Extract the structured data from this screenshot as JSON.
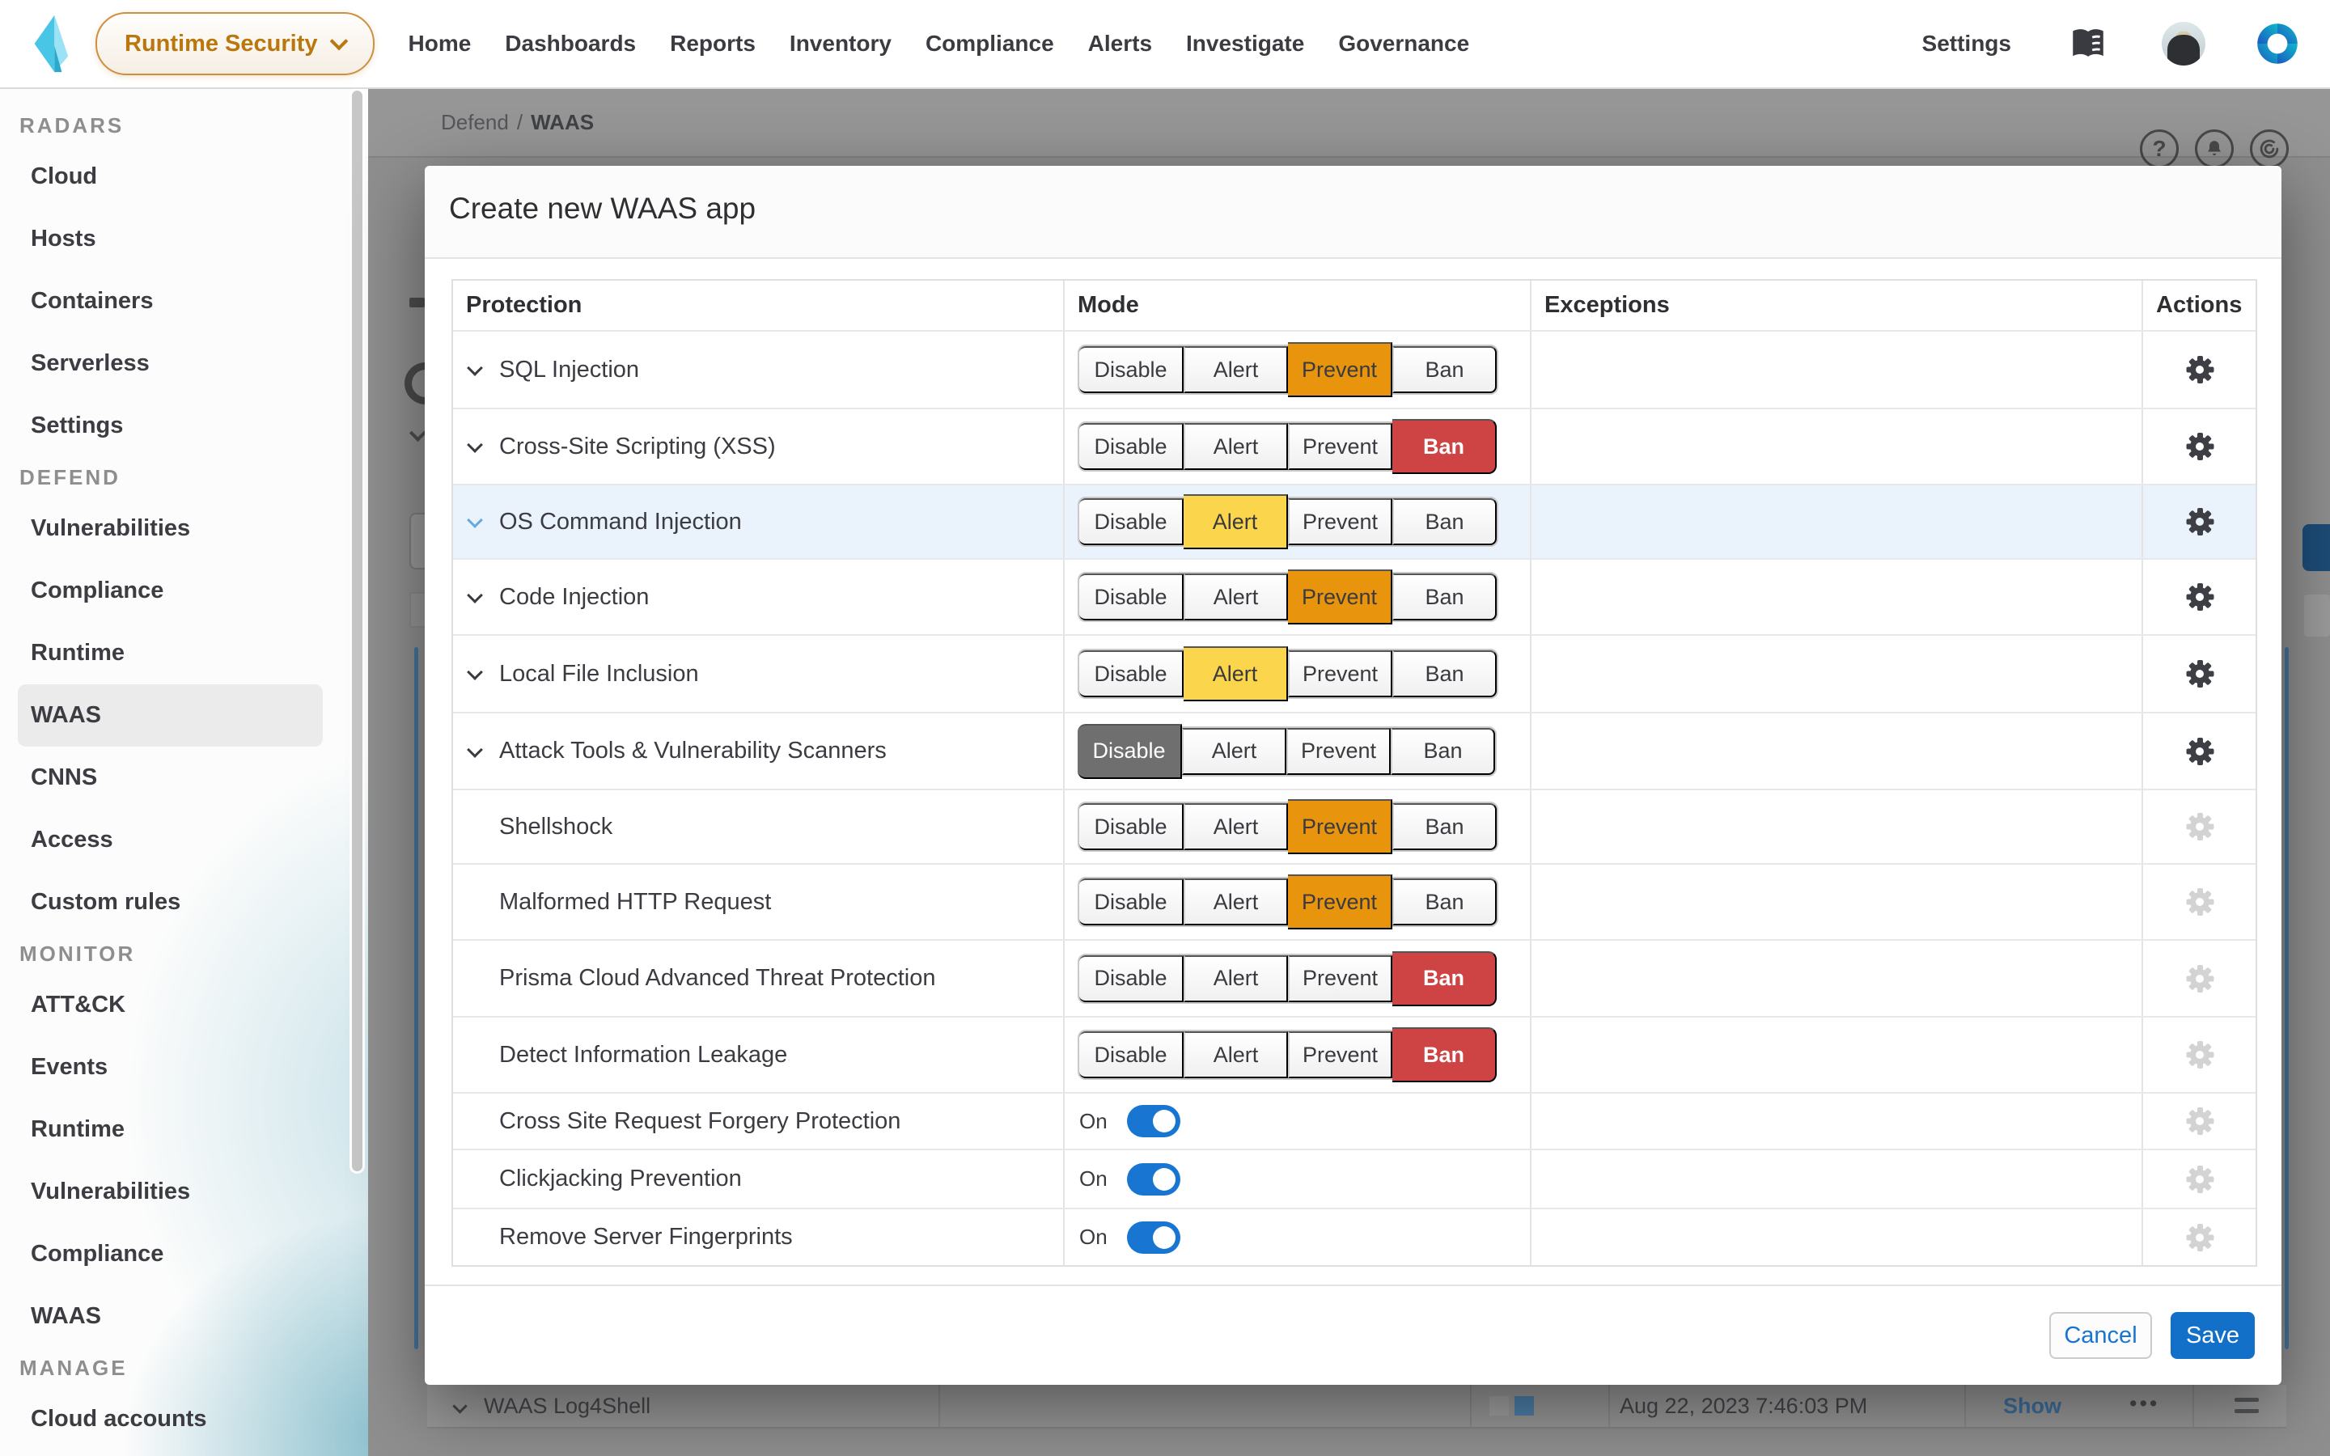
{
  "colors": {
    "accent_blue": "#1270C8",
    "toggle_blue": "#1875D1",
    "prevent_orange": "#E8940C",
    "ban_red": "#CE4444",
    "alert_yellow": "#FBD54B",
    "disable_gray": "#6F6F6F",
    "row_highlight": "#EAF3FB"
  },
  "navbar": {
    "product_switcher": "Runtime Security",
    "items": [
      "Home",
      "Dashboards",
      "Reports",
      "Inventory",
      "Compliance",
      "Alerts",
      "Investigate",
      "Governance"
    ],
    "settings_label": "Settings"
  },
  "sidebar": {
    "sections": [
      {
        "title": "RADARS",
        "items": [
          "Cloud",
          "Hosts",
          "Containers",
          "Serverless",
          "Settings"
        ],
        "selected_index": -1
      },
      {
        "title": "DEFEND",
        "items": [
          "Vulnerabilities",
          "Compliance",
          "Runtime",
          "WAAS",
          "CNNS",
          "Access",
          "Custom rules"
        ],
        "selected_index": 3
      },
      {
        "title": "MONITOR",
        "items": [
          "ATT&CK",
          "Events",
          "Runtime",
          "Vulnerabilities",
          "Compliance",
          "WAAS"
        ],
        "selected_index": -1
      },
      {
        "title": "MANAGE",
        "items": [
          "Cloud accounts"
        ],
        "selected_index": -1
      }
    ]
  },
  "breadcrumb": {
    "parent": "Defend",
    "separator": "/",
    "current": "WAAS"
  },
  "modal": {
    "title": "Create new WAAS app",
    "columns": [
      "Protection",
      "Mode",
      "Exceptions",
      "Actions"
    ],
    "mode_options": [
      "Disable",
      "Alert",
      "Prevent",
      "Ban"
    ],
    "rows": [
      {
        "name": "SQL Injection",
        "selected": "Prevent",
        "expandable": true,
        "gear_enabled": true,
        "highlighted": false
      },
      {
        "name": "Cross-Site Scripting (XSS)",
        "selected": "Ban",
        "expandable": true,
        "gear_enabled": true,
        "highlighted": false
      },
      {
        "name": "OS Command Injection",
        "selected": "Alert",
        "expandable": true,
        "gear_enabled": true,
        "highlighted": true
      },
      {
        "name": "Code Injection",
        "selected": "Prevent",
        "expandable": true,
        "gear_enabled": true,
        "highlighted": false
      },
      {
        "name": "Local File Inclusion",
        "selected": "Alert",
        "expandable": true,
        "gear_enabled": true,
        "highlighted": false
      },
      {
        "name": "Attack Tools & Vulnerability Scanners",
        "selected": "Disable",
        "expandable": true,
        "gear_enabled": true,
        "highlighted": false
      },
      {
        "name": "Shellshock",
        "selected": "Prevent",
        "expandable": false,
        "gear_enabled": false,
        "highlighted": false
      },
      {
        "name": "Malformed HTTP Request",
        "selected": "Prevent",
        "expandable": false,
        "gear_enabled": false,
        "highlighted": false
      },
      {
        "name": "Prisma Cloud Advanced Threat Protection",
        "selected": "Ban",
        "expandable": false,
        "gear_enabled": false,
        "highlighted": false
      },
      {
        "name": "Detect Information Leakage",
        "selected": "Ban",
        "expandable": false,
        "gear_enabled": false,
        "highlighted": false
      }
    ],
    "toggle_rows": [
      {
        "name": "Cross Site Request Forgery Protection",
        "state": "On"
      },
      {
        "name": "Clickjacking Prevention",
        "state": "On"
      },
      {
        "name": "Remove Server Fingerprints",
        "state": "On"
      }
    ],
    "footer": {
      "cancel": "Cancel",
      "save": "Save"
    }
  },
  "background_row": {
    "name": "WAAS Log4Shell",
    "date": "Aug 22, 2023 7:46:03 PM",
    "link": "Show",
    "ellipsis": "•••"
  }
}
